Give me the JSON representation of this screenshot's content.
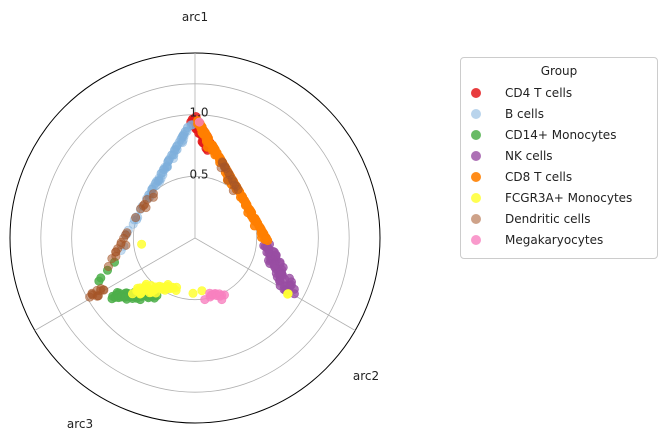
{
  "chart_data": {
    "type": "scatter",
    "coordinate_system": "polar-archetype",
    "title": "",
    "axes": [
      {
        "name": "arc1",
        "angle_deg": 0
      },
      {
        "name": "arc2",
        "angle_deg": 120
      },
      {
        "name": "arc3",
        "angle_deg": 240
      }
    ],
    "radial_ticks": [
      "0.5",
      "1.0"
    ],
    "radial_grid": [
      0.5,
      1.0,
      1.25
    ],
    "rmax": 1.5,
    "grid": true,
    "legend": {
      "title": "Group",
      "placement": "right"
    },
    "series": [
      {
        "name": "CD4 T cells",
        "color": "#e41a1c",
        "alpha": 0.85,
        "clusters": [
          {
            "from": [
              0.98,
              0.0,
              0.02
            ],
            "to": [
              0.82,
              0.16,
              0.02
            ],
            "n": 45,
            "spread": 0.015
          }
        ]
      },
      {
        "name": "B cells",
        "color": "#7fb0dc",
        "alpha": 0.45,
        "clusters": [
          {
            "from": [
              0.95,
              0.0,
              0.05
            ],
            "to": [
              0.55,
              0.0,
              0.45
            ],
            "n": 70,
            "spread": 0.012
          },
          {
            "from": [
              0.5,
              0.0,
              0.5
            ],
            "to": [
              0.3,
              0.0,
              0.7
            ],
            "n": 12,
            "spread": 0.02
          }
        ]
      },
      {
        "name": "CD14+ Monocytes",
        "color": "#4daf4a",
        "alpha": 0.85,
        "clusters": [
          {
            "from": [
              0.02,
              0.1,
              0.88
            ],
            "to": [
              0.02,
              0.3,
              0.68
            ],
            "n": 45,
            "spread": 0.012
          },
          {
            "from": [
              0.2,
              0.0,
              0.8
            ],
            "to": [
              0.1,
              0.0,
              0.9
            ],
            "n": 4,
            "spread": 0.01
          }
        ]
      },
      {
        "name": "NK cells",
        "color": "#984ea3",
        "alpha": 0.8,
        "clusters": [
          {
            "from": [
              0.3,
              0.68,
              0.02
            ],
            "to": [
              0.05,
              0.92,
              0.03
            ],
            "n": 60,
            "spread": 0.015
          }
        ]
      },
      {
        "name": "CD8 T cells",
        "color": "#ff7f00",
        "alpha": 0.9,
        "clusters": [
          {
            "from": [
              0.96,
              0.04,
              0.0
            ],
            "to": [
              0.32,
              0.68,
              0.0
            ],
            "n": 120,
            "spread": 0.012
          }
        ]
      },
      {
        "name": "FCGR3A+ Monocytes",
        "color": "#ffff33",
        "alpha": 0.85,
        "clusters": [
          {
            "from": [
              0.05,
              0.2,
              0.75
            ],
            "to": [
              0.06,
              0.38,
              0.56
            ],
            "n": 40,
            "spread": 0.012
          },
          {
            "from": [
              0.03,
              0.92,
              0.05
            ],
            "to": [
              0.03,
              0.92,
              0.05
            ],
            "n": 2,
            "spread": 0.005
          },
          {
            "from": [
              0.3,
              0.1,
              0.6
            ],
            "to": [
              0.3,
              0.1,
              0.6
            ],
            "n": 1,
            "spread": 0.0
          },
          {
            "from": [
              0.05,
              0.45,
              0.5
            ],
            "to": [
              0.05,
              0.5,
              0.45
            ],
            "n": 2,
            "spread": 0.01
          }
        ]
      },
      {
        "name": "Dendritic cells",
        "color": "#a65628",
        "alpha": 0.55,
        "clusters": [
          {
            "from": [
              0.6,
              0.4,
              0.0
            ],
            "to": [
              0.75,
              0.25,
              0.0
            ],
            "n": 15,
            "spread": 0.02
          },
          {
            "from": [
              0.35,
              0.0,
              0.65
            ],
            "to": [
              0.2,
              0.0,
              0.8
            ],
            "n": 12,
            "spread": 0.02
          },
          {
            "from": [
              0.02,
              0.0,
              0.98
            ],
            "to": [
              0.05,
              0.05,
              0.9
            ],
            "n": 12,
            "spread": 0.01
          },
          {
            "from": [
              0.45,
              0.0,
              0.55
            ],
            "to": [
              0.6,
              0.0,
              0.4
            ],
            "n": 8,
            "spread": 0.02
          }
        ]
      },
      {
        "name": "Megakaryocytes",
        "color": "#f781bf",
        "alpha": 0.8,
        "clusters": [
          {
            "from": [
              0.02,
              0.55,
              0.43
            ],
            "to": [
              0.02,
              0.62,
              0.36
            ],
            "n": 15,
            "spread": 0.01
          },
          {
            "from": [
              0.96,
              0.04,
              0.0
            ],
            "to": [
              0.96,
              0.04,
              0.0
            ],
            "n": 1,
            "spread": 0.0
          }
        ]
      }
    ]
  }
}
